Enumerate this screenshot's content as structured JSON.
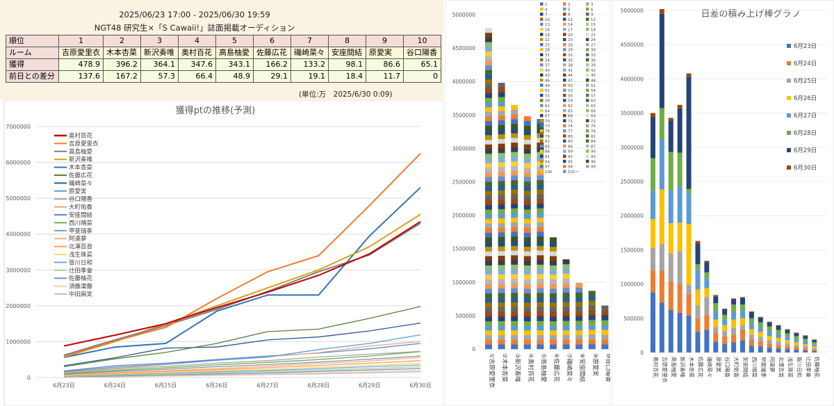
{
  "header": {
    "period": "2025/06/23 17:00 - 2025/06/30 19:59",
    "title": "NGT48 研究生×「S Cawaii!」誌面掲載オーディション",
    "unit_note": "(単位:万　2025/6/30 0:09)"
  },
  "table": {
    "row_labels": [
      "順位",
      "ルーム",
      "獲得",
      "前日との差分"
    ],
    "ranks": [
      "1",
      "2",
      "3",
      "4",
      "5",
      "6",
      "7",
      "8",
      "9",
      "10"
    ],
    "names": [
      "吉原愛里衣",
      "木本杏菜",
      "新沢奏唯",
      "奥村百花",
      "高島柚愛",
      "佐藤広花",
      "磯崎菜々",
      "安座間結",
      "原愛実",
      "谷口陽香"
    ],
    "gained": [
      "478.9",
      "396.2",
      "364.1",
      "347.6",
      "343.1",
      "166.2",
      "133.2",
      "98.1",
      "86.6",
      "65.1"
    ],
    "diff": [
      "137.6",
      "167.2",
      "57.3",
      "66.4",
      "48.9",
      "29.1",
      "19.1",
      "18.4",
      "11.7",
      "0"
    ]
  },
  "chart_data": [
    {
      "type": "line",
      "title": "獲得ptの推移(予測)",
      "x": [
        "6月23日",
        "6月24日",
        "6月25日",
        "6月26日",
        "6月27日",
        "6月28日",
        "6月29日",
        "6月30日"
      ],
      "ylim": [
        0,
        7000000
      ],
      "yticks": [
        0,
        1000000,
        2000000,
        3000000,
        4000000,
        5000000,
        6000000,
        7000000
      ],
      "grid": true,
      "legend_position": "top-left",
      "series": [
        {
          "name": "奥村百花",
          "color": "#c00000",
          "values": [
            880000,
            1180000,
            1500000,
            1950000,
            2380000,
            2850000,
            3450000,
            4350000
          ]
        },
        {
          "name": "吉原愛里衣",
          "color": "#ed7d31",
          "values": [
            580000,
            1020000,
            1400000,
            2200000,
            2950000,
            3400000,
            4800000,
            6250000
          ]
        },
        {
          "name": "高島柚愛",
          "color": "#7f7f7f",
          "values": [
            620000,
            1050000,
            1450000,
            1900000,
            2400000,
            2950000,
            3420000,
            4300000
          ]
        },
        {
          "name": "新沢奏唯",
          "color": "#d4a017",
          "values": [
            570000,
            1000000,
            1500000,
            2000000,
            2500000,
            3000000,
            3650000,
            4550000
          ]
        },
        {
          "name": "木本杏菜",
          "color": "#2e75b6",
          "values": [
            560000,
            850000,
            950000,
            1850000,
            2300000,
            2300000,
            3950000,
            5300000
          ]
        },
        {
          "name": "佐藤広花",
          "color": "#548235",
          "values": [
            300000,
            520000,
            700000,
            950000,
            1280000,
            1350000,
            1650000,
            1980000
          ]
        },
        {
          "name": "磯崎菜々",
          "color": "#2f5597",
          "values": [
            330000,
            550000,
            820000,
            850000,
            1050000,
            1130000,
            1300000,
            1520000
          ]
        },
        {
          "name": "原愛実",
          "color": "#5b9bd5",
          "values": [
            160000,
            290000,
            370000,
            480000,
            570000,
            780000,
            950000,
            1190000
          ]
        },
        {
          "name": "谷口陽香",
          "color": "#a5a5a5",
          "values": [
            120000,
            240000,
            310000,
            400000,
            470000,
            570000,
            650000,
            730000
          ]
        },
        {
          "name": "大町佑香",
          "color": "#e8a87c",
          "values": [
            150000,
            260000,
            360000,
            480000,
            580000,
            690000,
            880000,
            1000000
          ]
        },
        {
          "name": "安座間結",
          "color": "#5b86c5",
          "values": [
            180000,
            330000,
            400000,
            500000,
            600000,
            680000,
            800000,
            950000
          ]
        },
        {
          "name": "西川晴菜",
          "color": "#70ad47",
          "values": [
            100000,
            200000,
            270000,
            350000,
            420000,
            500000,
            600000,
            720000
          ]
        },
        {
          "name": "甲斐瑞季",
          "color": "#8497b0",
          "values": [
            90000,
            170000,
            230000,
            300000,
            360000,
            430000,
            510000,
            600000
          ]
        },
        {
          "name": "阿達夢",
          "color": "#f4b183",
          "values": [
            70000,
            140000,
            190000,
            250000,
            320000,
            390000,
            460000,
            560000
          ]
        },
        {
          "name": "北澤百音",
          "color": "#ff9966",
          "values": [
            60000,
            120000,
            170000,
            220000,
            280000,
            340000,
            400000,
            470000
          ]
        },
        {
          "name": "浅生珠菜",
          "color": "#ffd966",
          "values": [
            50000,
            100000,
            140000,
            190000,
            240000,
            290000,
            340000,
            400000
          ]
        },
        {
          "name": "皆川日和",
          "color": "#6fa8dc",
          "values": [
            40000,
            80000,
            120000,
            160000,
            200000,
            250000,
            300000,
            350000
          ]
        },
        {
          "name": "辻田季會",
          "color": "#a9d18e",
          "values": [
            30000,
            60000,
            90000,
            130000,
            170000,
            210000,
            250000,
            300000
          ]
        },
        {
          "name": "佐藤柚花",
          "color": "#7a8fb8",
          "values": [
            20000,
            40000,
            70000,
            100000,
            130000,
            170000,
            210000,
            250000
          ]
        },
        {
          "name": "須藤凜藤",
          "color": "#f8cbad",
          "values": [
            10000,
            30000,
            50000,
            80000,
            100000,
            130000,
            160000,
            200000
          ]
        },
        {
          "name": "中田麻実",
          "color": "#bfbfbf",
          "values": [
            10000,
            20000,
            40000,
            60000,
            80000,
            100000,
            130000,
            160000
          ]
        }
      ]
    },
    {
      "type": "bar",
      "stacked": true,
      "title": "",
      "categories": [
        "①吉原愛里衣",
        "②木本杏菜",
        "③新沢奏唯",
        "④奥村百花",
        "⑤高島柚愛",
        "⑥佐藤広花",
        "⑦磯崎菜々",
        "⑧安座間結",
        "⑨原愛実",
        "⑩谷口陽香"
      ],
      "totals": [
        4800000,
        3980000,
        3650000,
        3480000,
        3440000,
        1670000,
        1340000,
        990000,
        870000,
        650000
      ],
      "ylim": [
        0,
        5000000
      ],
      "yticks": [
        0,
        500000,
        1000000,
        1500000,
        2000000,
        2500000,
        3000000,
        3500000,
        4000000,
        4500000,
        5000000
      ],
      "legend_position": "right",
      "legend_labels": [
        "1",
        "2",
        "3",
        "4",
        "5",
        "6",
        "7",
        "8",
        "9",
        "10",
        "11",
        "12",
        "13",
        "14",
        "15",
        "16",
        "17",
        "18",
        "19",
        "20",
        "21",
        "22",
        "23",
        "24",
        "25",
        "26",
        "27",
        "28",
        "29",
        "30",
        "31",
        "32",
        "33",
        "34",
        "35",
        "36",
        "37",
        "38",
        "39",
        "40",
        "41",
        "42",
        "43",
        "44",
        "45",
        "46",
        "47",
        "48",
        "49",
        "50",
        "51",
        "52",
        "53",
        "54",
        "55",
        "56",
        "57",
        "58",
        "59",
        "60",
        "61",
        "62",
        "63",
        "64",
        "65",
        "66",
        "67",
        "68",
        "69",
        "70",
        "71",
        "72",
        "73",
        "74",
        "75",
        "76",
        "77",
        "78",
        "79",
        "80",
        "81",
        "82",
        "83",
        "84",
        "85",
        "86",
        "87",
        "88",
        "89",
        "90",
        "91",
        "92",
        "93",
        "94",
        "95",
        "96",
        "97",
        "98",
        "99",
        "100",
        "101～"
      ],
      "palette": [
        "#4472c4",
        "#ed7d31",
        "#a5a5a5",
        "#ffc000",
        "#5b9bd5",
        "#70ad47",
        "#264478",
        "#9e480e",
        "#636363",
        "#997300",
        "#255e91",
        "#43682b",
        "#698ed0",
        "#f1975a",
        "#b7b7b7",
        "#ffcd33",
        "#7cafdd",
        "#8cc168",
        "#333f50",
        "#843c0c",
        "#d9d9d9",
        "#bf9000",
        "#1f4e79",
        "#385723"
      ]
    },
    {
      "type": "bar",
      "stacked": true,
      "title": "日差の積み上げ棒グラフ",
      "categories": [
        "奥村百花",
        "吉原愛里衣",
        "高島柚愛",
        "新沢奏唯",
        "木本杏菜",
        "佐藤広花",
        "磯崎菜々",
        "原愛実",
        "谷口陽香",
        "大町佑香",
        "安座間結",
        "西川晴菜",
        "甲斐瑞季",
        "阿達夢",
        "北澤百音",
        "浅生珠菜",
        "皆川日和",
        "辻田季會",
        "佐藤柚花"
      ],
      "ylim": [
        0,
        5000000
      ],
      "yticks": [
        0,
        500000,
        1000000,
        1500000,
        2000000,
        2500000,
        3000000,
        3500000,
        4000000,
        4500000,
        5000000
      ],
      "legend_position": "right",
      "series": [
        {
          "name": "6月23日",
          "color": "#4472c4",
          "values": [
            880000,
            730000,
            620000,
            580000,
            540000,
            300000,
            330000,
            160000,
            130000,
            150000,
            180000,
            100000,
            90000,
            70000,
            60000,
            50000,
            40000,
            30000,
            20000
          ]
        },
        {
          "name": "6月24日",
          "color": "#ed7d31",
          "values": [
            320000,
            470000,
            420000,
            420000,
            320000,
            200000,
            220000,
            130000,
            110000,
            110000,
            150000,
            90000,
            80000,
            60000,
            50000,
            40000,
            40000,
            30000,
            20000
          ]
        },
        {
          "name": "6月25日",
          "color": "#a5a5a5",
          "values": [
            330000,
            380000,
            410000,
            480000,
            130000,
            190000,
            260000,
            80000,
            70000,
            100000,
            70000,
            70000,
            60000,
            50000,
            50000,
            40000,
            30000,
            30000,
            20000
          ]
        },
        {
          "name": "6月26日",
          "color": "#ffc000",
          "values": [
            420000,
            800000,
            440000,
            420000,
            890000,
            230000,
            130000,
            110000,
            90000,
            120000,
            100000,
            80000,
            70000,
            60000,
            50000,
            50000,
            40000,
            30000,
            30000
          ]
        },
        {
          "name": "6月27日",
          "color": "#5b9bd5",
          "values": [
            420000,
            740000,
            480000,
            520000,
            450000,
            290000,
            140000,
            120000,
            80000,
            110000,
            120000,
            80000,
            70000,
            70000,
            60000,
            50000,
            40000,
            40000,
            30000
          ]
        },
        {
          "name": "6月28日",
          "color": "#70ad47",
          "values": [
            470000,
            450000,
            560000,
            500000,
            60000,
            80000,
            90000,
            120000,
            70000,
            110000,
            80000,
            80000,
            70000,
            70000,
            60000,
            50000,
            50000,
            40000,
            30000
          ]
        },
        {
          "name": "6月29日",
          "color": "#264478",
          "values": [
            600000,
            1380000,
            460000,
            650000,
            1640000,
            300000,
            150000,
            100000,
            80000,
            80000,
            100000,
            90000,
            70000,
            60000,
            60000,
            50000,
            40000,
            40000,
            30000
          ]
        },
        {
          "name": "6月30日",
          "color": "#9e480e",
          "values": [
            60000,
            70000,
            40000,
            50000,
            50000,
            40000,
            20000,
            20000,
            10000,
            10000,
            10000,
            10000,
            10000,
            10000,
            10000,
            10000,
            10000,
            10000,
            10000
          ]
        }
      ]
    }
  ]
}
